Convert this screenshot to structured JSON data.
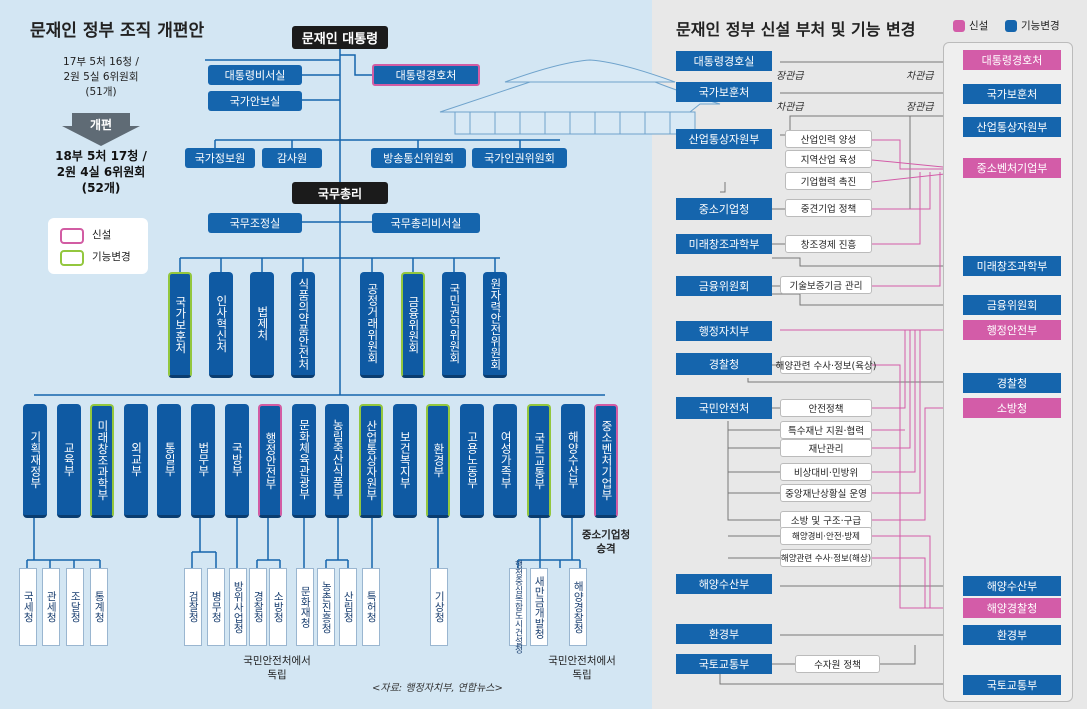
{
  "left": {
    "title": "문재인 정부 조직 개편안",
    "before": {
      "line1": "17부 5처 16청 /",
      "line2": "2원 5실 6위원회",
      "line3": "(51개)"
    },
    "arrow_label": "개편",
    "after": {
      "line1": "18부 5처 17청 /",
      "line2": "2원 4실 6위원회",
      "line3": "(52개)"
    },
    "legend": {
      "new_label": "신설",
      "changed_label": "기능변경"
    },
    "president": "문재인 대통령",
    "secretariat": "대통령비서실",
    "security": "국가안보실",
    "guard": "대통령경호처",
    "direct": [
      "국가정보원",
      "감사원",
      "방송통신위원회",
      "국가인권위원회"
    ],
    "pm": "국무총리",
    "pm_coord": "국무조정실",
    "pm_secretariat": "국무총리비서실",
    "pm_agencies": [
      "국가보훈처",
      "인사혁신처",
      "법제처",
      "식품의약품안전처",
      "공정거래위원회",
      "금융위원회",
      "국민권익위원회",
      "원자력안전위원회"
    ],
    "ministries": [
      "기획재정부",
      "교육부",
      "미래창조과학부",
      "외교부",
      "통일부",
      "법무부",
      "국방부",
      "행정안전부",
      "문화체육관광부",
      "농림축산식품부",
      "산업통상자원부",
      "보건복지부",
      "환경부",
      "고용노동부",
      "여성가족부",
      "국토교통부",
      "해양수산부",
      "중소벤처기업부"
    ],
    "sme_note": {
      "line1": "중소기업청",
      "line2": "승격"
    },
    "agencies": [
      "국세청",
      "관세청",
      "조달청",
      "통계청",
      "검찰청",
      "병무청",
      "방위사업청",
      "경찰청",
      "소방청",
      "문화재청",
      "농촌진흥청",
      "산림청",
      "특허청",
      "기상청",
      "행정중심복합도시건설청",
      "새만금개발청",
      "해양경찰청"
    ],
    "note_fire": {
      "line1": "국민안전처에서",
      "line2": "독립"
    },
    "note_coast": {
      "line1": "국민안전처에서",
      "line2": "독립"
    },
    "source": "<자료: 행정자치부, 연합뉴스>"
  },
  "right": {
    "title": "문재인 정부 신설 부처 및 기능 변경",
    "legend": {
      "new_label": "신설",
      "changed_label": "기능변경"
    },
    "before": [
      "대통령경호실",
      "국가보훈처",
      "산업통상자원부",
      "중소기업청",
      "미래창조과학부",
      "금융위원회",
      "행정자치부",
      "경찰청",
      "국민안전처",
      "해양수산부",
      "환경부",
      "국토교통부"
    ],
    "after": [
      "대통령경호처",
      "국가보훈처",
      "산업통상자원부",
      "중소벤처기업부",
      "미래창조과학부",
      "금융위원회",
      "행정안전부",
      "경찰청",
      "소방청",
      "해양수산부",
      "해양경찰청",
      "환경부",
      "국토교통부"
    ],
    "rank": {
      "guard_from": "장관급",
      "guard_to": "차관급",
      "vet_from": "차관급",
      "vet_to": "장관급"
    },
    "functions": {
      "motie": [
        "산업인력 양성",
        "지역산업 육성",
        "기업협력 촉진"
      ],
      "smba": "중견기업 정책",
      "msip": "창조경제 진흥",
      "fsc": "기술보증기금 관리",
      "police": "해양관련 수사·정보(육상)",
      "mpss": [
        "안전정책",
        "특수재난 지원·협력",
        "재난관리",
        "비상대비·민방위",
        "중앙재난상황실 운영",
        "소방 및 구조·구급",
        "해양경비·안전·방제",
        "해양관련 수사·정보(해상)"
      ],
      "molit": "수자원 정책"
    }
  },
  "colors": {
    "new": "#d35ca8",
    "changed": "#93c73e",
    "blue": "#1565ad",
    "dark": "#1b1b1b"
  }
}
